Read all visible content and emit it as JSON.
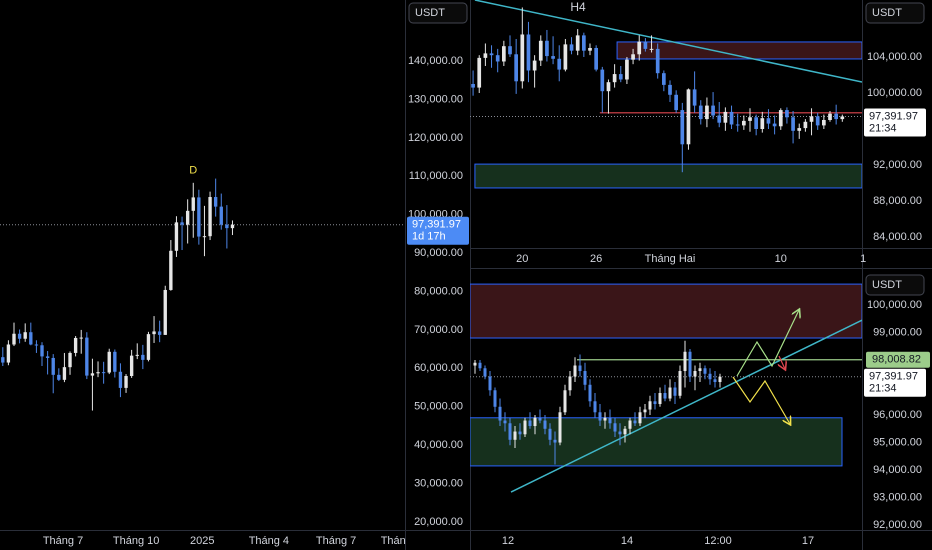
{
  "chart_data": [
    {
      "type": "candlestick",
      "currency": "USDT",
      "up_color": "#e6e6e6",
      "down_color": "#4e86e8",
      "xlim": [
        -0.5,
        71.8
      ],
      "ylim": [
        17900,
        155900
      ],
      "xticks": [
        {
          "value": 10.75,
          "label": "Tháng 7"
        },
        {
          "value": 23.8,
          "label": "Tháng 10"
        },
        {
          "value": 35.6,
          "label": "2025"
        },
        {
          "value": 47.5,
          "label": "Tháng 4"
        },
        {
          "value": 59.5,
          "label": "Tháng 7"
        },
        {
          "value": 69.7,
          "label": "Thán"
        }
      ],
      "yticks": [
        {
          "value": 140000,
          "label": "140,000.00"
        },
        {
          "value": 130000,
          "label": "130,000.00"
        },
        {
          "value": 120000,
          "label": "120,000.00"
        },
        {
          "value": 110000,
          "label": "110,000.00"
        },
        {
          "value": 100000,
          "label": "100,000.00"
        },
        {
          "value": 90000,
          "label": "90,000.00"
        },
        {
          "value": 80000,
          "label": "80,000.00"
        },
        {
          "value": 70000,
          "label": "70,000.00"
        },
        {
          "value": 60000,
          "label": "60,000.00"
        },
        {
          "value": 50000,
          "label": "50,000.00"
        },
        {
          "value": 40000,
          "label": "40,000.00"
        },
        {
          "value": 30000,
          "label": "30,000.00"
        },
        {
          "value": 20000,
          "label": "20,000.00"
        }
      ],
      "last_price": {
        "value": 97391.97,
        "label": "97,391.97"
      },
      "countdown": "1d 17h",
      "annotations": [
        {
          "text": "D",
          "x": 34
        }
      ],
      "candles": [
        [
          62900,
          65500,
          60600,
          61500
        ],
        [
          61500,
          67300,
          60800,
          66200
        ],
        [
          66200,
          71900,
          65800,
          69000
        ],
        [
          69000,
          70100,
          66500,
          67700
        ],
        [
          67700,
          71700,
          66900,
          69400
        ],
        [
          69400,
          71900,
          66000,
          66200
        ],
        [
          66200,
          67300,
          64000,
          66000
        ],
        [
          66000,
          66800,
          60600,
          63100
        ],
        [
          63100,
          64500,
          58400,
          62700
        ],
        [
          62700,
          63700,
          53500,
          58300
        ],
        [
          58300,
          60000,
          56700,
          57000
        ],
        [
          57000,
          64000,
          56400,
          60300
        ],
        [
          60300,
          64400,
          58300,
          64000
        ],
        [
          64000,
          68400,
          63100,
          67900
        ],
        [
          67900,
          70000,
          63800,
          68000
        ],
        [
          68000,
          69400,
          57200,
          58100
        ],
        [
          58100,
          62500,
          49000,
          58700
        ],
        [
          58700,
          61800,
          57700,
          59000
        ],
        [
          59000,
          61700,
          56000,
          58900
        ],
        [
          58900,
          65100,
          58500,
          64300
        ],
        [
          64300,
          64900,
          57600,
          59100
        ],
        [
          59100,
          61300,
          52500,
          54900
        ],
        [
          54900,
          58500,
          53600,
          58000
        ],
        [
          58000,
          64800,
          57500,
          63300
        ],
        [
          63300,
          66500,
          62400,
          63500
        ],
        [
          63500,
          66100,
          59800,
          62200
        ],
        [
          62200,
          69500,
          61800,
          68900
        ],
        [
          68900,
          73600,
          66600,
          69600
        ],
        [
          69600,
          72400,
          66800,
          68700
        ],
        [
          68700,
          81500,
          68700,
          80400
        ],
        [
          80400,
          93400,
          80200,
          90600
        ],
        [
          90600,
          99600,
          89000,
          98000
        ],
        [
          98000,
          99500,
          90800,
          97400
        ],
        [
          97400,
          104000,
          92500,
          101000
        ],
        [
          101000,
          108300,
          94000,
          104500
        ],
        [
          104500,
          106500,
          92200,
          94300
        ],
        [
          94300,
          102300,
          89200,
          94400
        ],
        [
          94400,
          106000,
          93400,
          104600
        ],
        [
          104600,
          109400,
          99500,
          102100
        ],
        [
          102100,
          105500,
          96100,
          97400
        ],
        [
          97400,
          102500,
          91200,
          96500
        ],
        [
          96500,
          98500,
          94700,
          97392
        ]
      ]
    },
    {
      "type": "candlestick",
      "currency": "USDT",
      "title": "H4",
      "up_color": "#e6e6e6",
      "down_color": "#4e86e8",
      "xlim": [
        -0.5,
        63.2
      ],
      "ylim": [
        82780,
        110330
      ],
      "xticks": [
        {
          "value": 8,
          "label": "20"
        },
        {
          "value": 20,
          "label": "26"
        },
        {
          "value": 32,
          "label": "Tháng Hai"
        },
        {
          "value": 50,
          "label": "10"
        },
        {
          "value": 63.4,
          "label": "1"
        }
      ],
      "yticks": [
        {
          "value": 104000,
          "label": "104,000.00"
        },
        {
          "value": 100000,
          "label": "100,000.00"
        },
        {
          "value": 92000,
          "label": "92,000.00"
        },
        {
          "value": 88000,
          "label": "88,000.00"
        },
        {
          "value": 84000,
          "label": "84,000.00"
        }
      ],
      "last_price": {
        "value": 97391.97,
        "label": "97,391.97"
      },
      "countdown": "21:34",
      "zones": [
        {
          "x": [
            23.4,
            63.2
          ],
          "y": [
            103780,
            105670
          ],
          "color": "#3a1518"
        },
        {
          "x": [
            0.3,
            63.2
          ],
          "y": [
            89450,
            92100
          ],
          "color": "#16301d"
        }
      ],
      "trendlines": [
        {
          "x": [
            0.3,
            63.2
          ],
          "y": [
            110330,
            101220
          ],
          "color": "#3fb6c8"
        }
      ],
      "levels": [
        {
          "x": [
            20.6,
            63.2
          ],
          "value": 97800,
          "color": "#e0474f"
        }
      ],
      "candles": [
        [
          101000,
          102500,
          99700,
          100600
        ],
        [
          100600,
          104200,
          100000,
          103900
        ],
        [
          103900,
          105500,
          103000,
          104400
        ],
        [
          104400,
          105300,
          102800,
          104200
        ],
        [
          104200,
          104900,
          102300,
          103500
        ],
        [
          103500,
          105800,
          103000,
          105200
        ],
        [
          105200,
          106400,
          104000,
          104300
        ],
        [
          104300,
          106000,
          99900,
          101300
        ],
        [
          101300,
          109500,
          100500,
          106500
        ],
        [
          106500,
          107900,
          101200,
          102500
        ],
        [
          102500,
          104200,
          100600,
          103600
        ],
        [
          103600,
          106400,
          103000,
          105800
        ],
        [
          105800,
          107000,
          103500,
          104100
        ],
        [
          104100,
          106300,
          103200,
          103800
        ],
        [
          103800,
          105300,
          101300,
          102600
        ],
        [
          102600,
          106000,
          102400,
          105400
        ],
        [
          105400,
          106200,
          104300,
          104700
        ],
        [
          104700,
          107100,
          104200,
          106400
        ],
        [
          106400,
          106700,
          104000,
          104700
        ],
        [
          104700,
          105500,
          104200,
          105000
        ],
        [
          105000,
          105300,
          102400,
          102600
        ],
        [
          102600,
          102900,
          97800,
          100200
        ],
        [
          100200,
          101500,
          97700,
          101200
        ],
        [
          101200,
          103200,
          100600,
          102100
        ],
        [
          102100,
          103000,
          101200,
          101500
        ],
        [
          101500,
          104000,
          101000,
          103700
        ],
        [
          103700,
          104900,
          103200,
          104300
        ],
        [
          104300,
          106400,
          103600,
          105700
        ],
        [
          105700,
          106100,
          104600,
          104900
        ],
        [
          104900,
          106400,
          104500,
          104900
        ],
        [
          104900,
          105500,
          101600,
          102200
        ],
        [
          102200,
          102500,
          100200,
          100900
        ],
        [
          100900,
          101400,
          99000,
          99800
        ],
        [
          99800,
          100300,
          97800,
          98100
        ],
        [
          98100,
          98900,
          91200,
          94300
        ],
        [
          94300,
          100500,
          93700,
          100400
        ],
        [
          100400,
          102400,
          97800,
          98600
        ],
        [
          98600,
          99200,
          96500,
          97100
        ],
        [
          97100,
          99500,
          96200,
          98600
        ],
        [
          98600,
          100100,
          97100,
          97500
        ],
        [
          97500,
          99000,
          96200,
          96700
        ],
        [
          96700,
          98400,
          95800,
          97900
        ],
        [
          97900,
          98600,
          96000,
          96500
        ],
        [
          96500,
          97700,
          95700,
          96400
        ],
        [
          96400,
          97500,
          95900,
          96900
        ],
        [
          96900,
          98300,
          95700,
          97300
        ],
        [
          97300,
          97600,
          95300,
          96000
        ],
        [
          96000,
          97900,
          95600,
          97200
        ],
        [
          97200,
          98200,
          96000,
          96600
        ],
        [
          96600,
          97500,
          95400,
          96300
        ],
        [
          96300,
          98300,
          95900,
          98100
        ],
        [
          98100,
          98400,
          96600,
          97300
        ],
        [
          97300,
          98000,
          94400,
          95800
        ],
        [
          95800,
          96600,
          94900,
          96100
        ],
        [
          96100,
          97100,
          95700,
          96800
        ],
        [
          96800,
          98300,
          95300,
          97400
        ],
        [
          97400,
          97800,
          95900,
          96400
        ],
        [
          96400,
          97600,
          96000,
          97000
        ],
        [
          97000,
          98000,
          96800,
          97700
        ],
        [
          97700,
          98700,
          96500,
          97100
        ],
        [
          97100,
          97600,
          96800,
          97392
        ]
      ]
    },
    {
      "type": "candlestick",
      "currency": "USDT",
      "up_color": "#e6e6e6",
      "down_color": "#4e86e8",
      "xlim": [
        -1,
        77.4
      ],
      "ylim": [
        91820,
        101200
      ],
      "xticks": [
        {
          "value": 6.6,
          "label": "12"
        },
        {
          "value": 30.4,
          "label": "14"
        },
        {
          "value": 48.6,
          "label": "12:00"
        },
        {
          "value": 66.6,
          "label": "17"
        }
      ],
      "yticks": [
        {
          "value": 100000,
          "label": "100,000.00"
        },
        {
          "value": 99000,
          "label": "99,000.00"
        },
        {
          "value": 96000,
          "label": "96,000.00"
        },
        {
          "value": 95000,
          "label": "95,000.00"
        },
        {
          "value": 94000,
          "label": "94,000.00"
        },
        {
          "value": 93000,
          "label": "93,000.00"
        },
        {
          "value": 92000,
          "label": "92,000.00"
        }
      ],
      "last_price": {
        "value": 97391.97,
        "label": "97,391.97"
      },
      "countdown": "21:34",
      "zones": [
        {
          "x": [
            -1,
            77.4
          ],
          "y": [
            98800,
            100760
          ],
          "color": "#3a1518"
        },
        {
          "x": [
            -1,
            73.4
          ],
          "y": [
            94150,
            95900
          ],
          "color": "#16301d"
        }
      ],
      "trendlines": [
        {
          "x": [
            7.2,
            77.4
          ],
          "y": [
            93200,
            99450
          ],
          "color": "#3fb6c8"
        }
      ],
      "levels": [
        {
          "x": [
            20.4,
            77.4
          ],
          "value": 98008.82,
          "label": "98,008.82",
          "color": "#9ccc8a"
        }
      ],
      "candles": [
        [
          97800,
          98000,
          97500,
          97900
        ],
        [
          97900,
          98000,
          97600,
          97700
        ],
        [
          97700,
          97800,
          97300,
          97400
        ],
        [
          97400,
          97600,
          96700,
          96900
        ],
        [
          96900,
          97000,
          96100,
          96300
        ],
        [
          96300,
          96600,
          95600,
          95800
        ],
        [
          95800,
          96100,
          95400,
          95700
        ],
        [
          95700,
          95900,
          94900,
          95100
        ],
        [
          95100,
          95600,
          94800,
          95400
        ],
        [
          95400,
          95700,
          95100,
          95300
        ],
        [
          95300,
          95900,
          95200,
          95800
        ],
        [
          95800,
          96100,
          95500,
          95600
        ],
        [
          95600,
          96000,
          95300,
          95900
        ],
        [
          95900,
          96200,
          95700,
          95800
        ],
        [
          95800,
          96000,
          95300,
          95500
        ],
        [
          95500,
          95700,
          94900,
          95100
        ],
        [
          95100,
          95400,
          94200,
          95000
        ],
        [
          95000,
          96300,
          94900,
          96100
        ],
        [
          96100,
          97100,
          96000,
          96900
        ],
        [
          96900,
          97600,
          96700,
          97400
        ],
        [
          97400,
          98100,
          97200,
          97800
        ],
        [
          97800,
          98200,
          97400,
          97600
        ],
        [
          97600,
          97900,
          96900,
          97100
        ],
        [
          97100,
          97300,
          96300,
          96500
        ],
        [
          96500,
          96800,
          95900,
          96100
        ],
        [
          96100,
          96400,
          95600,
          95800
        ],
        [
          95800,
          96100,
          95500,
          95900
        ],
        [
          95900,
          96200,
          95500,
          95700
        ],
        [
          95700,
          95900,
          95200,
          95400
        ],
        [
          95400,
          95700,
          94900,
          95300
        ],
        [
          95300,
          95600,
          95000,
          95500
        ],
        [
          95500,
          95900,
          95300,
          95800
        ],
        [
          95800,
          96100,
          95600,
          95700
        ],
        [
          95700,
          96300,
          95600,
          96100
        ],
        [
          96100,
          96400,
          95900,
          96200
        ],
        [
          96200,
          96700,
          96000,
          96500
        ],
        [
          96500,
          96800,
          96200,
          96400
        ],
        [
          96400,
          97000,
          96300,
          96800
        ],
        [
          96800,
          97100,
          96500,
          96600
        ],
        [
          96600,
          97300,
          96500,
          97000
        ],
        [
          97000,
          97200,
          96400,
          96700
        ],
        [
          96700,
          97800,
          96600,
          97600
        ],
        [
          97600,
          98700,
          97000,
          98300
        ],
        [
          98300,
          98400,
          97200,
          97400
        ],
        [
          97400,
          97800,
          96900,
          97600
        ],
        [
          97600,
          97900,
          97200,
          97700
        ],
        [
          97700,
          97800,
          97300,
          97500
        ],
        [
          97500,
          97700,
          97100,
          97300
        ],
        [
          97300,
          97600,
          97000,
          97200
        ],
        [
          97200,
          97500,
          97000,
          97392
        ]
      ]
    }
  ]
}
